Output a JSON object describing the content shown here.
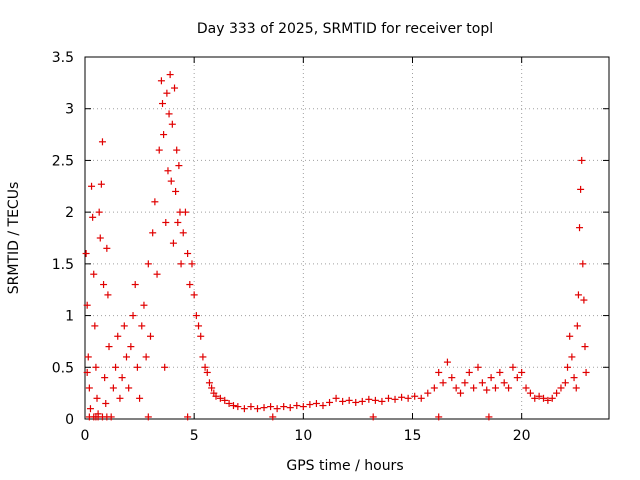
{
  "chart_data": {
    "type": "scatter",
    "title": "Day 333 of 2025, SRMTID for receiver topl",
    "xlabel": "GPS time / hours",
    "ylabel": "SRMTID / TECUs",
    "xlim": [
      0,
      24
    ],
    "ylim": [
      0,
      3.5
    ],
    "xticks": [
      0,
      5,
      10,
      15,
      20
    ],
    "yticks": [
      0,
      0.5,
      1,
      1.5,
      2,
      2.5,
      3,
      3.5
    ],
    "xtick_labels": [
      "0",
      "5",
      "10",
      "15",
      "20"
    ],
    "ytick_labels": [
      "0",
      "0.5",
      "1",
      "1.5",
      "2",
      "2.5",
      "3",
      "3.5"
    ],
    "grid": true,
    "marker": "+",
    "color": "#e00000",
    "series": [
      {
        "name": "SRMTID",
        "points": [
          [
            0.05,
            1.6
          ],
          [
            0.1,
            1.1
          ],
          [
            0.15,
            0.6
          ],
          [
            0.2,
            0.3
          ],
          [
            0.25,
            0.1
          ],
          [
            0.3,
            2.25
          ],
          [
            0.35,
            1.95
          ],
          [
            0.4,
            1.4
          ],
          [
            0.45,
            0.9
          ],
          [
            0.5,
            0.5
          ],
          [
            0.55,
            0.2
          ],
          [
            0.6,
            0.05
          ],
          [
            0.65,
            2.0
          ],
          [
            0.7,
            1.75
          ],
          [
            0.75,
            2.27
          ],
          [
            0.8,
            2.68
          ],
          [
            0.85,
            1.3
          ],
          [
            0.9,
            0.4
          ],
          [
            0.95,
            0.15
          ],
          [
            1.0,
            1.65
          ],
          [
            1.05,
            1.2
          ],
          [
            1.1,
            0.7
          ],
          [
            0.1,
            0.45
          ],
          [
            0.2,
            0.02
          ],
          [
            0.4,
            0.02
          ],
          [
            0.6,
            0.02
          ],
          [
            0.8,
            0.02
          ],
          [
            1.0,
            0.02
          ],
          [
            1.2,
            0.02
          ],
          [
            1.3,
            0.3
          ],
          [
            1.4,
            0.5
          ],
          [
            1.5,
            0.8
          ],
          [
            1.6,
            0.2
          ],
          [
            1.7,
            0.4
          ],
          [
            1.8,
            0.9
          ],
          [
            1.9,
            0.6
          ],
          [
            2.0,
            0.3
          ],
          [
            2.1,
            0.7
          ],
          [
            2.2,
            1.0
          ],
          [
            2.3,
            1.3
          ],
          [
            2.4,
            0.5
          ],
          [
            2.5,
            0.2
          ],
          [
            2.6,
            0.9
          ],
          [
            2.7,
            1.1
          ],
          [
            2.8,
            0.6
          ],
          [
            2.9,
            1.5
          ],
          [
            3.0,
            0.8
          ],
          [
            3.1,
            1.8
          ],
          [
            3.2,
            2.1
          ],
          [
            3.3,
            1.4
          ],
          [
            3.4,
            2.6
          ],
          [
            3.5,
            3.27
          ],
          [
            3.55,
            3.05
          ],
          [
            3.6,
            2.75
          ],
          [
            3.65,
            0.5
          ],
          [
            3.7,
            1.9
          ],
          [
            3.75,
            3.15
          ],
          [
            3.8,
            2.4
          ],
          [
            3.85,
            2.95
          ],
          [
            3.9,
            3.33
          ],
          [
            3.95,
            2.3
          ],
          [
            4.0,
            2.85
          ],
          [
            4.05,
            1.7
          ],
          [
            4.1,
            3.2
          ],
          [
            4.15,
            2.2
          ],
          [
            4.2,
            2.6
          ],
          [
            4.25,
            1.9
          ],
          [
            4.3,
            2.45
          ],
          [
            4.35,
            2.0
          ],
          [
            4.4,
            1.5
          ],
          [
            4.5,
            1.8
          ],
          [
            4.6,
            2.0
          ],
          [
            4.7,
            1.6
          ],
          [
            4.8,
            1.3
          ],
          [
            4.9,
            1.5
          ],
          [
            5.0,
            1.2
          ],
          [
            5.1,
            1.0
          ],
          [
            5.2,
            0.9
          ],
          [
            5.3,
            0.8
          ],
          [
            5.4,
            0.6
          ],
          [
            5.5,
            0.5
          ],
          [
            5.6,
            0.45
          ],
          [
            5.7,
            0.35
          ],
          [
            5.8,
            0.3
          ],
          [
            5.9,
            0.25
          ],
          [
            6.0,
            0.22
          ],
          [
            6.2,
            0.2
          ],
          [
            6.4,
            0.18
          ],
          [
            6.6,
            0.15
          ],
          [
            6.8,
            0.13
          ],
          [
            7.0,
            0.12
          ],
          [
            7.3,
            0.1
          ],
          [
            7.6,
            0.12
          ],
          [
            7.9,
            0.1
          ],
          [
            8.2,
            0.11
          ],
          [
            8.5,
            0.12
          ],
          [
            8.8,
            0.1
          ],
          [
            9.1,
            0.12
          ],
          [
            9.4,
            0.11
          ],
          [
            9.7,
            0.13
          ],
          [
            10.0,
            0.12
          ],
          [
            10.3,
            0.14
          ],
          [
            10.6,
            0.15
          ],
          [
            10.9,
            0.13
          ],
          [
            11.2,
            0.16
          ],
          [
            11.5,
            0.2
          ],
          [
            11.8,
            0.17
          ],
          [
            12.1,
            0.18
          ],
          [
            12.4,
            0.16
          ],
          [
            12.7,
            0.17
          ],
          [
            13.0,
            0.19
          ],
          [
            13.3,
            0.18
          ],
          [
            13.6,
            0.17
          ],
          [
            13.9,
            0.2
          ],
          [
            14.2,
            0.19
          ],
          [
            14.5,
            0.21
          ],
          [
            14.8,
            0.2
          ],
          [
            15.1,
            0.22
          ],
          [
            15.4,
            0.2
          ],
          [
            15.7,
            0.25
          ],
          [
            16.0,
            0.3
          ],
          [
            16.2,
            0.45
          ],
          [
            16.4,
            0.35
          ],
          [
            16.6,
            0.55
          ],
          [
            16.8,
            0.4
          ],
          [
            17.0,
            0.3
          ],
          [
            17.2,
            0.25
          ],
          [
            17.4,
            0.35
          ],
          [
            17.6,
            0.45
          ],
          [
            17.8,
            0.3
          ],
          [
            18.0,
            0.5
          ],
          [
            18.2,
            0.35
          ],
          [
            18.4,
            0.28
          ],
          [
            18.6,
            0.4
          ],
          [
            18.8,
            0.3
          ],
          [
            19.0,
            0.45
          ],
          [
            19.2,
            0.35
          ],
          [
            19.4,
            0.3
          ],
          [
            19.6,
            0.5
          ],
          [
            19.8,
            0.4
          ],
          [
            20.0,
            0.45
          ],
          [
            20.2,
            0.3
          ],
          [
            20.4,
            0.25
          ],
          [
            20.6,
            0.2
          ],
          [
            20.8,
            0.22
          ],
          [
            21.0,
            0.2
          ],
          [
            21.2,
            0.18
          ],
          [
            21.4,
            0.2
          ],
          [
            21.6,
            0.25
          ],
          [
            21.8,
            0.3
          ],
          [
            22.0,
            0.35
          ],
          [
            22.1,
            0.5
          ],
          [
            22.2,
            0.8
          ],
          [
            22.3,
            0.6
          ],
          [
            22.4,
            0.4
          ],
          [
            22.5,
            0.3
          ],
          [
            22.55,
            0.9
          ],
          [
            22.6,
            1.2
          ],
          [
            22.65,
            1.85
          ],
          [
            22.7,
            2.22
          ],
          [
            22.75,
            2.5
          ],
          [
            22.8,
            1.5
          ],
          [
            22.85,
            1.15
          ],
          [
            22.9,
            0.7
          ],
          [
            22.95,
            0.45
          ],
          [
            0.5,
            0.02
          ],
          [
            2.9,
            0.02
          ],
          [
            4.7,
            0.02
          ],
          [
            8.6,
            0.02
          ],
          [
            13.2,
            0.02
          ],
          [
            16.2,
            0.02
          ],
          [
            18.5,
            0.02
          ]
        ]
      }
    ]
  }
}
